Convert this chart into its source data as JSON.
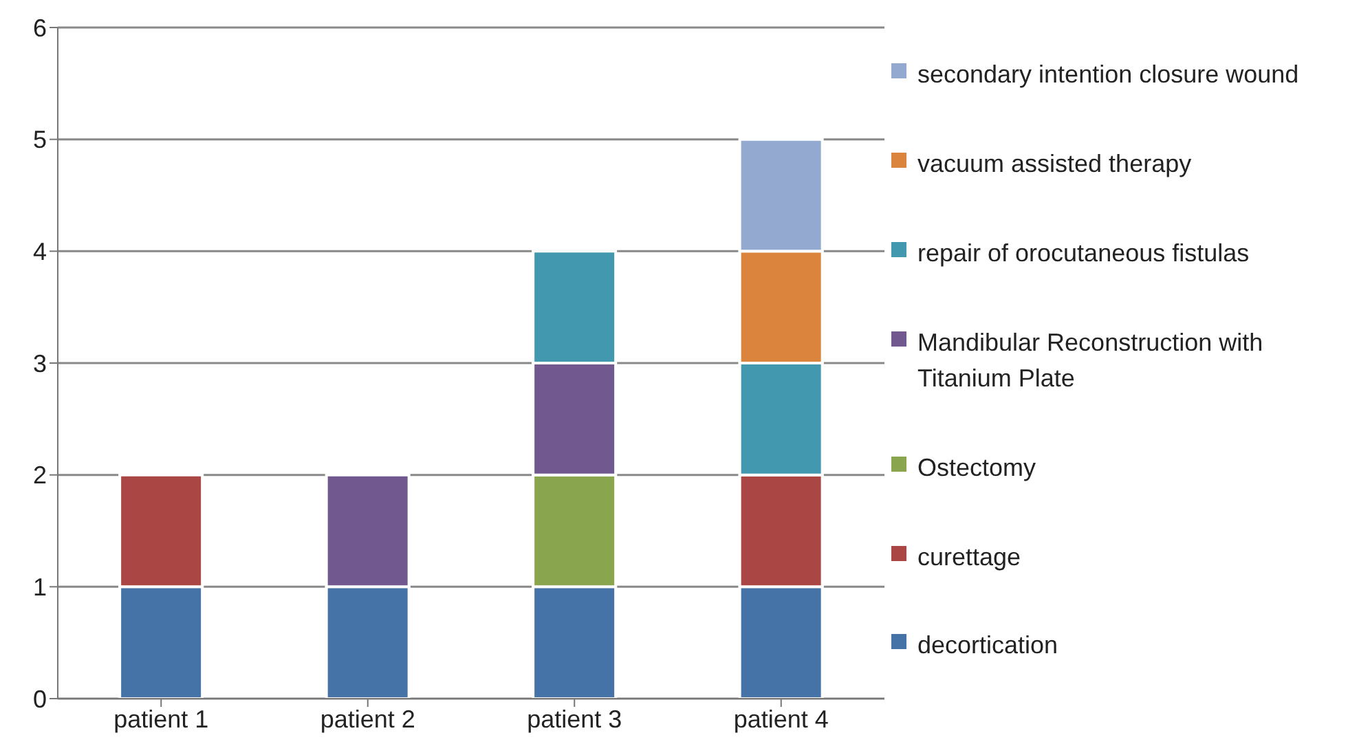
{
  "chart_data": {
    "type": "bar",
    "stacked": true,
    "categories": [
      "patient 1",
      "patient 2",
      "patient 3",
      "patient 4"
    ],
    "series": [
      {
        "name": "decortication",
        "color": "#4572a7",
        "values": [
          1,
          1,
          1,
          1
        ]
      },
      {
        "name": "curettage",
        "color": "#aa4643",
        "values": [
          1,
          0,
          0,
          1
        ]
      },
      {
        "name": "Ostectomy",
        "color": "#89a54e",
        "values": [
          0,
          0,
          1,
          0
        ]
      },
      {
        "name": "Mandibular Reconstruction with Titanium Plate",
        "color": "#71588f",
        "values": [
          0,
          1,
          1,
          0
        ]
      },
      {
        "name": "repair of orocutaneous fistulas",
        "color": "#4198af",
        "values": [
          0,
          0,
          1,
          1
        ]
      },
      {
        "name": "vacuum assisted therapy",
        "color": "#db843d",
        "values": [
          0,
          0,
          0,
          1
        ]
      },
      {
        "name": "secondary intention closure wound",
        "color": "#93a9cf",
        "values": [
          0,
          0,
          0,
          1
        ]
      }
    ],
    "ylim": [
      0,
      6
    ],
    "yticks": [
      0,
      1,
      2,
      3,
      4,
      5,
      6
    ],
    "grid": "y",
    "legend": "right"
  }
}
